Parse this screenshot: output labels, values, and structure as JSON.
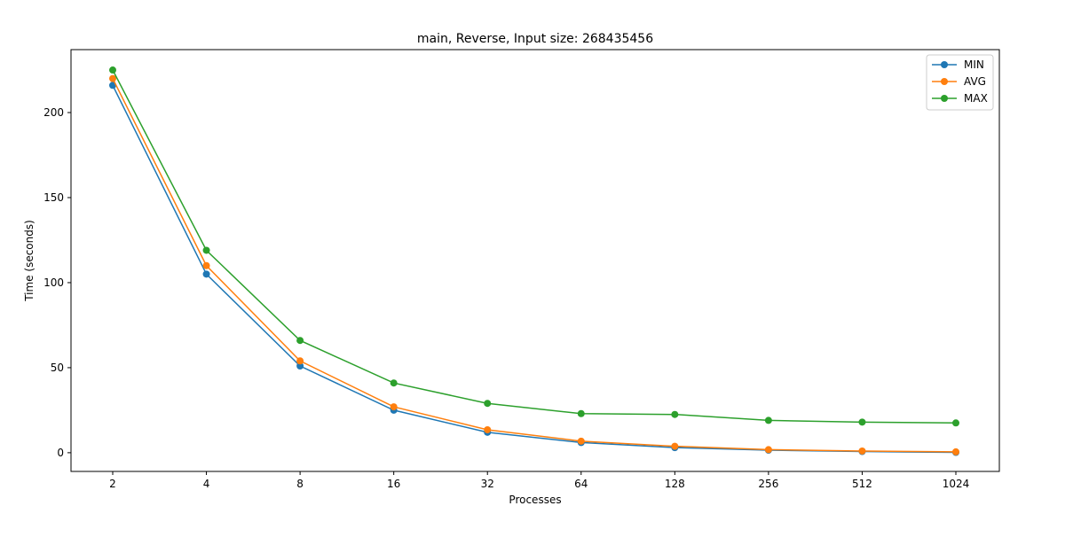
{
  "chart_data": {
    "type": "line",
    "title": "main, Reverse, Input size: 268435456",
    "xlabel": "Processes",
    "ylabel": "Time (seconds)",
    "categories": [
      "2",
      "4",
      "8",
      "16",
      "32",
      "64",
      "128",
      "256",
      "512",
      "1024"
    ],
    "yticks": [
      "0",
      "50",
      "100",
      "150",
      "200"
    ],
    "ylim": [
      -11,
      237
    ],
    "grid": false,
    "legend_position": "top-right",
    "series": [
      {
        "name": "MIN",
        "color": "#1f77b4",
        "values": [
          216,
          105,
          51,
          25,
          12,
          6,
          3,
          1.5,
          0.7,
          0.2
        ]
      },
      {
        "name": "AVG",
        "color": "#ff7f0e",
        "values": [
          220,
          110,
          54,
          27,
          13.5,
          6.8,
          3.8,
          1.8,
          1.0,
          0.5
        ]
      },
      {
        "name": "MAX",
        "color": "#2ca02c",
        "values": [
          225,
          119,
          66,
          41,
          29,
          23,
          22.5,
          19,
          18,
          17.5
        ]
      }
    ]
  }
}
